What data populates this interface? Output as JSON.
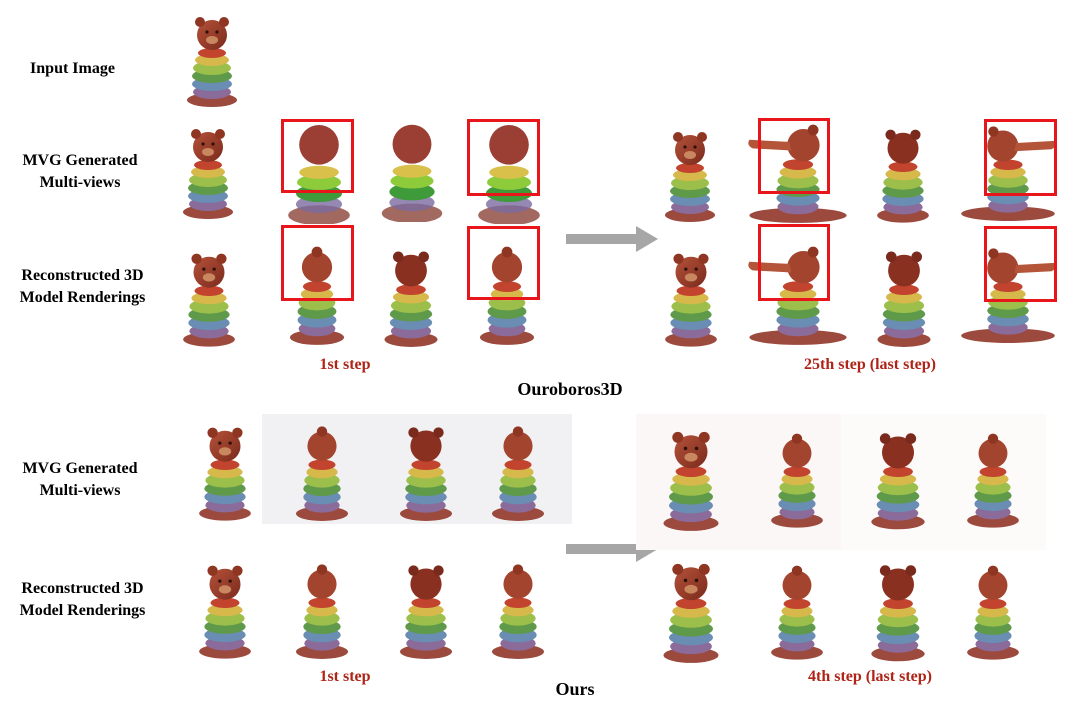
{
  "rows": {
    "input_image": "Input  Image",
    "mvg_line1": "MVG Generated",
    "mvg_line2": "Multi-views",
    "recon_line1": "Reconstructed 3D",
    "recon_line2": "Model Renderings"
  },
  "ouroboros": {
    "title": "Ouroboros3D",
    "left_caption": "1st step",
    "right_caption": "25th step (last step)"
  },
  "ours": {
    "title": "Ours",
    "left_caption": "1st step",
    "right_caption": "4th step (last step)"
  },
  "colors": {
    "caption": "#b02418",
    "highlight_box": "#e8161b",
    "arrow": "#a6a6a6"
  }
}
